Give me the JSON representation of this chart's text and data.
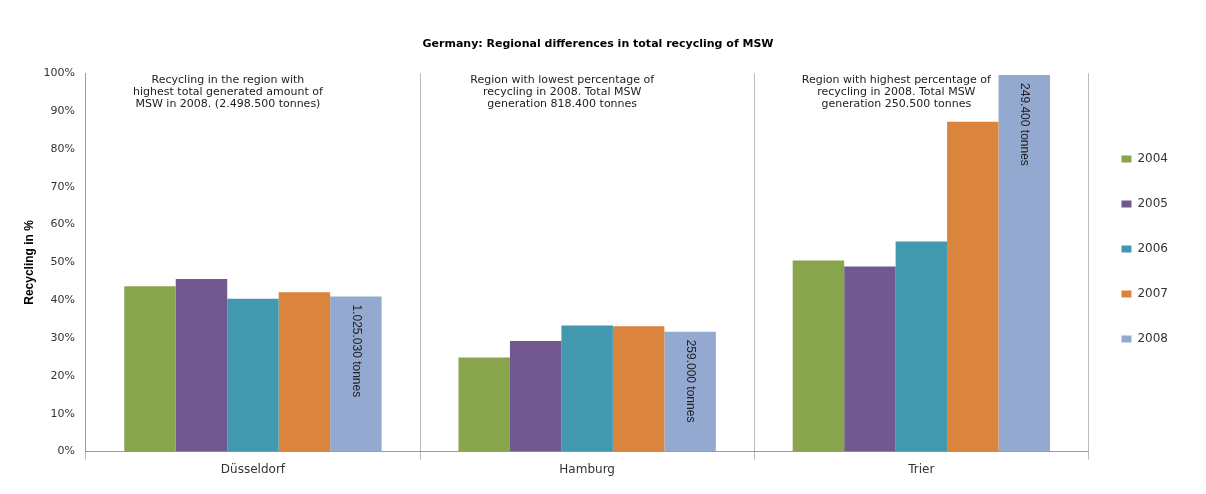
{
  "chart_data": {
    "type": "bar",
    "title": "Germany: Regional differences in total recycling of MSW",
    "ylabel": "Recycling in %",
    "categories": [
      "Düsseldorf",
      "Hamburg",
      "Trier"
    ],
    "series": [
      {
        "name": "2004",
        "color": "#88a44c",
        "values": [
          43.7,
          24.9,
          50.5
        ]
      },
      {
        "name": "2005",
        "color": "#71588f",
        "values": [
          45.6,
          29.2,
          48.9
        ]
      },
      {
        "name": "2006",
        "color": "#4198af",
        "values": [
          40.4,
          33.3,
          55.5
        ]
      },
      {
        "name": "2007",
        "color": "#db843d",
        "values": [
          42.1,
          33.1,
          87.2
        ]
      },
      {
        "name": "2008",
        "color": "#93a9cf",
        "values": [
          41.0,
          31.7,
          99.5
        ]
      }
    ],
    "ylim": [
      0,
      100
    ],
    "yticks": [
      {
        "value": 0,
        "label": "0%"
      },
      {
        "value": 10,
        "label": "10%"
      },
      {
        "value": 20,
        "label": "20%"
      },
      {
        "value": 30,
        "label": "30%"
      },
      {
        "value": 40,
        "label": "40%"
      },
      {
        "value": 50,
        "label": "50%"
      },
      {
        "value": 60,
        "label": "60%"
      },
      {
        "value": 70,
        "label": "70%"
      },
      {
        "value": 80,
        "label": "80%"
      },
      {
        "value": 90,
        "label": "90%"
      },
      {
        "value": 100,
        "label": "100%"
      }
    ],
    "grid": "x",
    "legend": "right",
    "annotations": [
      "Recycling in the region with highest total generated amount of MSW in 2008. (2.498.500 tonnes)",
      "Region with lowest percentage of recycling in 2008. Total MSW generation 818.400 tonnes",
      "Region with highest percentage of recycling in 2008. Total MSW generation 250.500 tonnes",
      "1.025.030 tonnes",
      "259.000 tonnes",
      "249.400 tonnes"
    ]
  }
}
